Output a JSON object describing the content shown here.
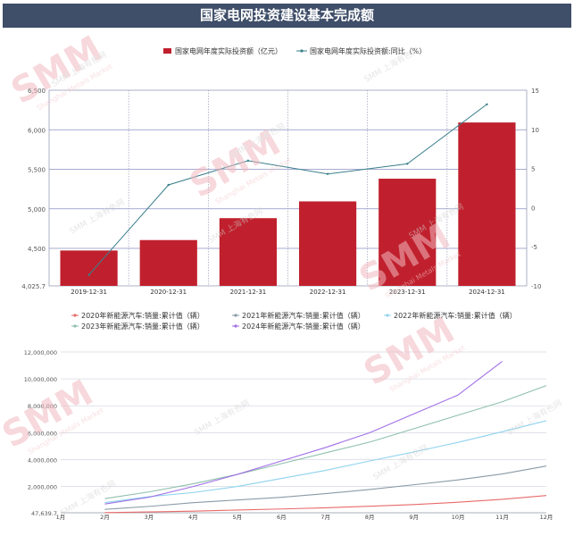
{
  "title": "国家电网投资建设基本完成额",
  "watermark": {
    "logo": "SMM",
    "cn": "SMM 上海有色网",
    "en": "Shanghai Metals Market"
  },
  "chart_data": [
    {
      "type": "bar",
      "categories": [
        "2019-12-31",
        "2020-12-31",
        "2021-12-31",
        "2022-12-31",
        "2023-12-31",
        "2024-12-31"
      ],
      "series": [
        {
          "name": "国家电网年度实际投资额（亿元）",
          "type": "bar",
          "axis": "left",
          "color": "#c0202d",
          "values": [
            4473,
            4605,
            4882,
            5094,
            5381,
            6092
          ]
        },
        {
          "name": "国家电网年度实际投资额:同比（%）",
          "type": "line",
          "axis": "right",
          "color": "#3a7f8c",
          "values": [
            -8.6,
            2.9,
            6.0,
            4.3,
            5.6,
            13.2
          ]
        }
      ],
      "left_axis": {
        "ylim": [
          4025.7,
          6500
        ],
        "ticks": [
          "4,025.7",
          "4,500",
          "5,000",
          "5,500",
          "6,000",
          "6,500"
        ]
      },
      "right_axis": {
        "ylim": [
          -10,
          15
        ],
        "ticks": [
          "-10",
          "-5",
          "0",
          "5",
          "10",
          "15"
        ]
      },
      "legend_position": "top-center",
      "grid": true
    },
    {
      "type": "line",
      "categories": [
        "1月",
        "2月",
        "3月",
        "4月",
        "5月",
        "6月",
        "7月",
        "8月",
        "9月",
        "10月",
        "11月",
        "12月"
      ],
      "series": [
        {
          "name": "2020年新能源汽车:销量:累计值（辆）",
          "color": "#e86a6a",
          "values": [
            null,
            57000,
            110000,
            170000,
            250000,
            330000,
            420000,
            530000,
            660000,
            830000,
            1050000,
            1330000
          ]
        },
        {
          "name": "2021年新能源汽车:销量:累计值（辆）",
          "color": "#8a9aa6",
          "values": [
            null,
            300000,
            520000,
            800000,
            1000000,
            1200000,
            1470000,
            1780000,
            2130000,
            2490000,
            2930000,
            3520000
          ]
        },
        {
          "name": "2022年新能源汽车:销量:累计值（辆）",
          "color": "#8fd3ee",
          "values": [
            null,
            800000,
            1250000,
            1550000,
            2000000,
            2600000,
            3200000,
            3900000,
            4570000,
            5280000,
            6070000,
            6890000
          ]
        },
        {
          "name": "2023年新能源汽车:销量:累计值（辆）",
          "color": "#8fbfad",
          "values": [
            null,
            1100000,
            1600000,
            2200000,
            2900000,
            3700000,
            4500000,
            5300000,
            6300000,
            7300000,
            8300000,
            9500000
          ]
        },
        {
          "name": "2024年新能源汽车:销量:累计值（辆）",
          "color": "#a06ee6",
          "values": [
            null,
            700000,
            1200000,
            2000000,
            2900000,
            3900000,
            4900000,
            6000000,
            7400000,
            8800000,
            11300000,
            null
          ]
        }
      ],
      "ylim": [
        47639.7,
        12000000
      ],
      "yticks": [
        "47,639.7",
        "2,000,000",
        "4,000,000",
        "6,000,000",
        "8,000,000",
        "10,000,000",
        "12,000,000"
      ],
      "legend_position": "top-center",
      "grid": true
    }
  ]
}
